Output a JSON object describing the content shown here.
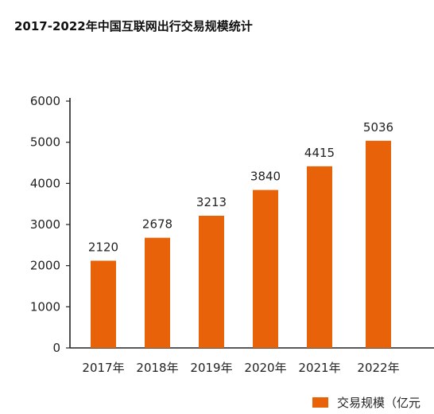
{
  "title": "2017-2022年中国互联网出行交易规模统计",
  "colors": {
    "bar": "#E8620A",
    "axis": "#222222"
  },
  "chart_data": {
    "type": "bar",
    "title": "2017-2022年中国互联网出行交易规模统计",
    "categories": [
      "2017年",
      "2018年",
      "2019年",
      "2020年",
      "2021年",
      "2022年"
    ],
    "series": [
      {
        "name": "交易规模（亿元",
        "values": [
          2120,
          2678,
          3213,
          3840,
          4415,
          5036
        ]
      }
    ],
    "ylim": [
      0,
      6000
    ],
    "yticks": [
      "0",
      "1000",
      "2000",
      "3000",
      "4000",
      "5000",
      "6000"
    ],
    "xlabel": "",
    "ylabel": "",
    "grid": false,
    "legend": "bottom-right"
  }
}
